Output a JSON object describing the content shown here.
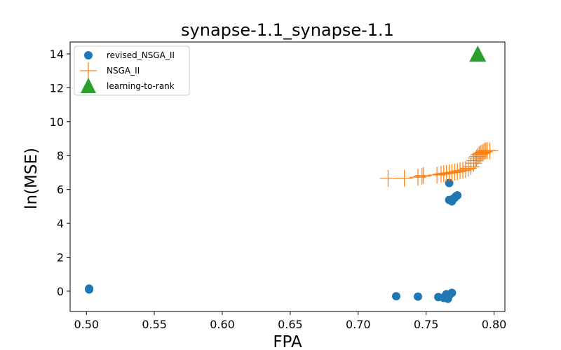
{
  "chart_data": {
    "type": "scatter",
    "title": "synapse-1.1_synapse-1.1",
    "xlabel": "FPA",
    "ylabel": "ln(MSE)",
    "xlim": [
      0.488,
      0.808
    ],
    "ylim": [
      -1.2,
      14.7
    ],
    "xticks": [
      0.5,
      0.55,
      0.6,
      0.65,
      0.7,
      0.75,
      0.8
    ],
    "xtick_labels": [
      "0.50",
      "0.55",
      "0.60",
      "0.65",
      "0.70",
      "0.75",
      "0.80"
    ],
    "yticks": [
      0,
      2,
      4,
      6,
      8,
      10,
      12,
      14
    ],
    "ytick_labels": [
      "0",
      "2",
      "4",
      "6",
      "8",
      "10",
      "12",
      "14"
    ],
    "grid": false,
    "legend_position": "top-left",
    "series": [
      {
        "name": "revised_NSGA_II",
        "marker": "circle",
        "color": "#1f77b4",
        "points": [
          [
            0.502,
            0.15
          ],
          [
            0.502,
            0.1
          ],
          [
            0.728,
            -0.3
          ],
          [
            0.744,
            -0.32
          ],
          [
            0.759,
            -0.35
          ],
          [
            0.763,
            -0.4
          ],
          [
            0.764,
            -0.3
          ],
          [
            0.765,
            -0.18
          ],
          [
            0.766,
            -0.45
          ],
          [
            0.767,
            -0.25
          ],
          [
            0.769,
            -0.1
          ],
          [
            0.767,
            6.38
          ],
          [
            0.767,
            5.38
          ],
          [
            0.769,
            5.3
          ],
          [
            0.77,
            5.45
          ],
          [
            0.771,
            5.5
          ],
          [
            0.772,
            5.6
          ],
          [
            0.773,
            5.65
          ]
        ]
      },
      {
        "name": "NSGA_II",
        "marker": "plus",
        "color": "#ff7f0e",
        "points": [
          [
            0.722,
            6.65
          ],
          [
            0.734,
            6.66
          ],
          [
            0.744,
            6.72
          ],
          [
            0.747,
            6.78
          ],
          [
            0.748,
            6.82
          ],
          [
            0.758,
            6.85
          ],
          [
            0.761,
            6.9
          ],
          [
            0.763,
            6.93
          ],
          [
            0.765,
            6.95
          ],
          [
            0.767,
            6.98
          ],
          [
            0.769,
            7.0
          ],
          [
            0.771,
            7.02
          ],
          [
            0.773,
            7.05
          ],
          [
            0.775,
            7.1
          ],
          [
            0.777,
            7.12
          ],
          [
            0.779,
            7.18
          ],
          [
            0.781,
            7.25
          ],
          [
            0.783,
            7.35
          ],
          [
            0.785,
            7.55
          ],
          [
            0.786,
            7.7
          ],
          [
            0.787,
            7.85
          ],
          [
            0.788,
            7.95
          ],
          [
            0.789,
            8.05
          ],
          [
            0.79,
            8.1
          ],
          [
            0.791,
            8.15
          ],
          [
            0.792,
            8.2
          ],
          [
            0.793,
            8.25
          ],
          [
            0.794,
            8.28
          ],
          [
            0.795,
            8.3
          ],
          [
            0.797,
            8.28
          ]
        ]
      },
      {
        "name": "learning-to-rank",
        "marker": "triangle",
        "color": "#2ca02c",
        "points": [
          [
            0.788,
            13.95
          ]
        ]
      }
    ]
  }
}
